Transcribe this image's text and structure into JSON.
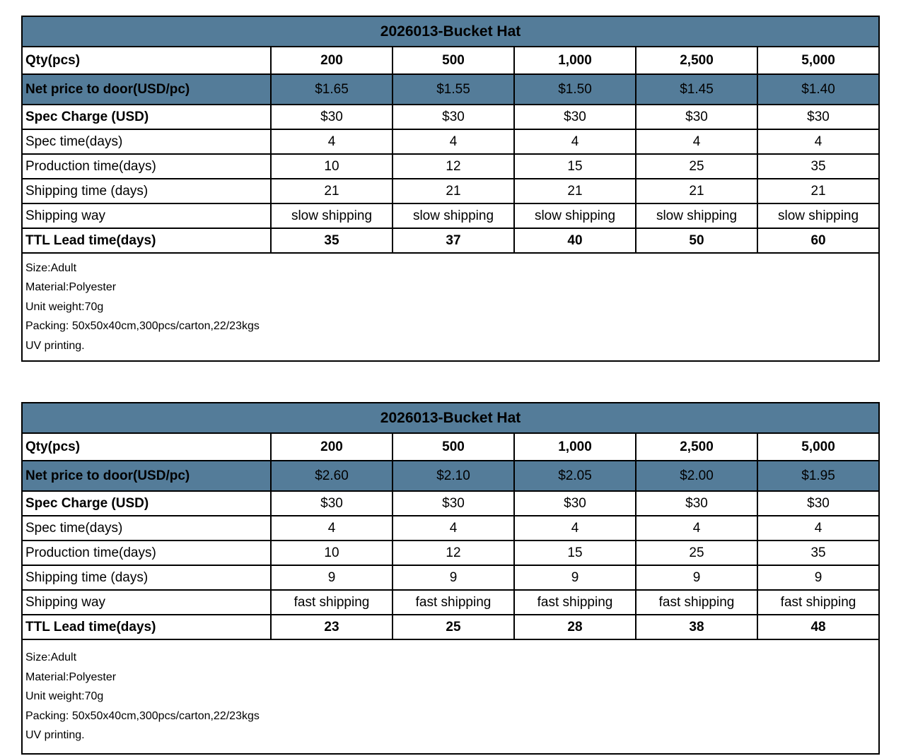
{
  "colors": {
    "header_blue": "#547c99",
    "border": "#000000",
    "background": "#ffffff",
    "text": "#000000"
  },
  "tables": [
    {
      "id": "slow",
      "title": "2026013-Bucket Hat",
      "qty_row": {
        "label": "Qty(pcs)",
        "values": [
          "200",
          "500",
          "1,000",
          "2,500",
          "5,000"
        ]
      },
      "rows": [
        {
          "label": "Net price to door(USD/pc)",
          "values": [
            "$1.65",
            "$1.55",
            "$1.50",
            "$1.45",
            "$1.40"
          ],
          "highlight": true,
          "bold_label": true,
          "bold_values": false
        },
        {
          "label": "Spec Charge (USD)",
          "values": [
            "$30",
            "$30",
            "$30",
            "$30",
            "$30"
          ],
          "highlight": false,
          "bold_label": true,
          "bold_values": false
        },
        {
          "label": "Spec time(days)",
          "values": [
            "4",
            "4",
            "4",
            "4",
            "4"
          ],
          "highlight": false,
          "bold_label": false,
          "bold_values": false
        },
        {
          "label": "Production time(days)",
          "values": [
            "10",
            "12",
            "15",
            "25",
            "35"
          ],
          "highlight": false,
          "bold_label": false,
          "bold_values": false
        },
        {
          "label": "Shipping time (days)",
          "values": [
            "21",
            "21",
            "21",
            "21",
            "21"
          ],
          "highlight": false,
          "bold_label": false,
          "bold_values": false
        },
        {
          "label": "Shipping way",
          "values": [
            "slow shipping",
            "slow shipping",
            "slow shipping",
            "slow shipping",
            "slow shipping"
          ],
          "highlight": false,
          "bold_label": false,
          "bold_values": false
        },
        {
          "label": "TTL Lead time(days)",
          "values": [
            "35",
            "37",
            "40",
            "50",
            "60"
          ],
          "highlight": false,
          "bold_label": true,
          "bold_values": true
        }
      ],
      "notes": [
        "Size:Adult",
        "Material:Polyester",
        "Unit weight:70g",
        "Packing: 50x50x40cm,300pcs/carton,22/23kgs",
        "UV printing."
      ]
    },
    {
      "id": "fast",
      "title": "2026013-Bucket Hat",
      "qty_row": {
        "label": "Qty(pcs)",
        "values": [
          "200",
          "500",
          "1,000",
          "2,500",
          "5,000"
        ]
      },
      "rows": [
        {
          "label": "Net price to door(USD/pc)",
          "values": [
            "$2.60",
            "$2.10",
            "$2.05",
            "$2.00",
            "$1.95"
          ],
          "highlight": true,
          "bold_label": true,
          "bold_values": false
        },
        {
          "label": "Spec Charge (USD)",
          "values": [
            "$30",
            "$30",
            "$30",
            "$30",
            "$30"
          ],
          "highlight": false,
          "bold_label": true,
          "bold_values": false
        },
        {
          "label": "Spec time(days)",
          "values": [
            "4",
            "4",
            "4",
            "4",
            "4"
          ],
          "highlight": false,
          "bold_label": false,
          "bold_values": false
        },
        {
          "label": "Production time(days)",
          "values": [
            "10",
            "12",
            "15",
            "25",
            "35"
          ],
          "highlight": false,
          "bold_label": false,
          "bold_values": false
        },
        {
          "label": "Shipping time (days)",
          "values": [
            "9",
            "9",
            "9",
            "9",
            "9"
          ],
          "highlight": false,
          "bold_label": false,
          "bold_values": false
        },
        {
          "label": "Shipping way",
          "values": [
            "fast shipping",
            "fast shipping",
            "fast shipping",
            "fast shipping",
            "fast shipping"
          ],
          "highlight": false,
          "bold_label": false,
          "bold_values": false
        },
        {
          "label": "TTL Lead time(days)",
          "values": [
            "23",
            "25",
            "28",
            "38",
            "48"
          ],
          "highlight": false,
          "bold_label": true,
          "bold_values": true
        }
      ],
      "notes": [
        "Size:Adult",
        "Material:Polyester",
        "Unit weight:70g",
        "Packing: 50x50x40cm,300pcs/carton,22/23kgs",
        "UV printing."
      ]
    }
  ]
}
